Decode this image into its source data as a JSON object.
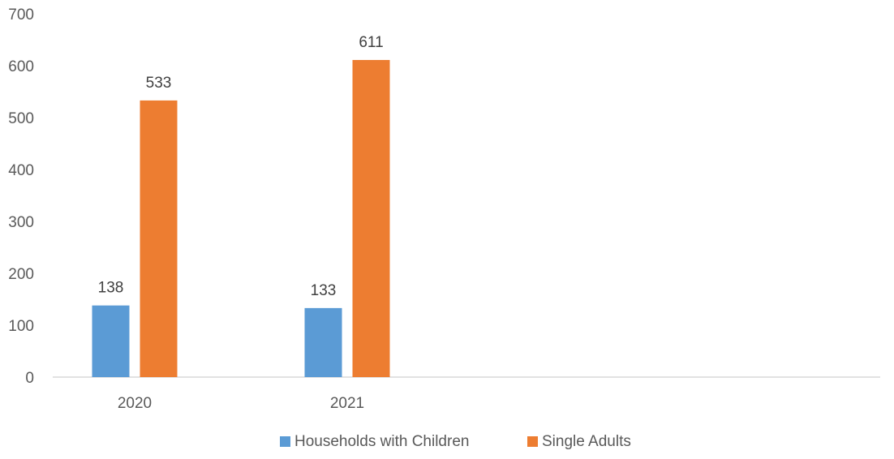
{
  "chart_data": {
    "type": "bar",
    "title": "",
    "xlabel": "",
    "ylabel": "",
    "categories": [
      "2020",
      "2021"
    ],
    "series": [
      {
        "name": "Households with Children",
        "values": [
          138,
          133
        ],
        "color": "#5B9BD5"
      },
      {
        "name": "Single Adults",
        "values": [
          533,
          611
        ],
        "color": "#ED7D31"
      }
    ],
    "ylim": [
      0,
      700
    ],
    "yticks": [
      0,
      100,
      200,
      300,
      400,
      500,
      600,
      700
    ],
    "grid": false,
    "data_labels": true,
    "legend_position": "bottom"
  }
}
